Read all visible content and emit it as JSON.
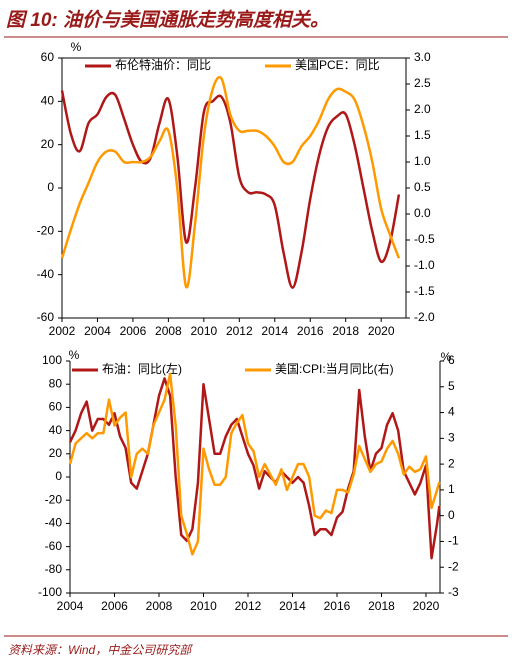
{
  "title": "图 10: 油价与美国通胀走势高度相关。",
  "source": "资料来源：Wind，中金公司研究部",
  "chart_data": [
    {
      "type": "line",
      "y_label": "%",
      "x": [
        2002,
        2002.5,
        2003,
        2003.5,
        2004,
        2004.5,
        2005,
        2005.5,
        2006,
        2006.5,
        2007,
        2007.5,
        2008,
        2008.5,
        2009,
        2009.5,
        2010,
        2010.5,
        2011,
        2011.5,
        2012,
        2012.5,
        2013,
        2013.5,
        2014,
        2014.5,
        2015,
        2015.5,
        2016,
        2016.5,
        2017,
        2017.5,
        2018,
        2018.5,
        2019,
        2019.5,
        2020,
        2020.5,
        2021
      ],
      "series": [
        {
          "name": "布伦特油价：同比",
          "color": "#b01818",
          "values": [
            45,
            25,
            17,
            30,
            34,
            42,
            43,
            32,
            20,
            12,
            14,
            30,
            41,
            15,
            -25,
            0,
            35,
            40,
            42,
            30,
            5,
            -2,
            -2,
            -3,
            -8,
            -30,
            -46,
            -30,
            -5,
            15,
            28,
            33,
            34,
            20,
            0,
            -20,
            -34,
            -25,
            -3
          ]
        },
        {
          "name": "美国PCE：同比",
          "color": "#ff9900",
          "axis": "y2",
          "values": [
            -0.85,
            -0.3,
            0.2,
            0.6,
            1.0,
            1.2,
            1.2,
            1.0,
            1.0,
            1.0,
            1.1,
            1.4,
            1.6,
            0.5,
            -1.4,
            -0.2,
            1.5,
            2.4,
            2.6,
            1.9,
            1.6,
            1.6,
            1.6,
            1.5,
            1.3,
            1.0,
            1.0,
            1.3,
            1.5,
            1.8,
            2.2,
            2.4,
            2.35,
            2.2,
            1.7,
            1.0,
            0.1,
            -0.4,
            -0.85
          ]
        }
      ],
      "xlim": [
        2002,
        2021.4
      ],
      "xticks": [
        2002,
        2004,
        2006,
        2008,
        2010,
        2012,
        2014,
        2016,
        2018,
        2020
      ],
      "ylim": [
        -60,
        60
      ],
      "yticks": [
        -60,
        -40,
        -20,
        0,
        20,
        40,
        60
      ],
      "y2lim": [
        -2,
        3
      ],
      "y2ticks": [
        {
          "value": -2,
          "label": "-2.0"
        },
        -1.5,
        {
          "value": -1,
          "label": "-1.0"
        },
        -0.5,
        {
          "value": 0,
          "label": "0.0"
        },
        0.5,
        {
          "value": 1,
          "label": "1.0"
        },
        1.5,
        {
          "value": 2,
          "label": "2.0"
        },
        2.5,
        {
          "value": 3,
          "label": "3.0"
        }
      ]
    },
    {
      "type": "line",
      "y_label": "%",
      "y2_label": "%",
      "x": [
        2004,
        2004.25,
        2004.5,
        2004.75,
        2005,
        2005.25,
        2005.5,
        2005.75,
        2006,
        2006.25,
        2006.5,
        2006.75,
        2007,
        2007.25,
        2007.5,
        2007.75,
        2008,
        2008.25,
        2008.5,
        2008.75,
        2009,
        2009.25,
        2009.5,
        2009.75,
        2010,
        2010.25,
        2010.5,
        2010.75,
        2011,
        2011.25,
        2011.5,
        2011.75,
        2012,
        2012.25,
        2012.5,
        2012.75,
        2013,
        2013.25,
        2013.5,
        2013.75,
        2014,
        2014.25,
        2014.5,
        2014.75,
        2015,
        2015.25,
        2015.5,
        2015.75,
        2016,
        2016.25,
        2016.5,
        2016.75,
        2017,
        2017.25,
        2017.5,
        2017.75,
        2018,
        2018.25,
        2018.5,
        2018.75,
        2019,
        2019.25,
        2019.5,
        2019.75,
        2020,
        2020.25,
        2020.5,
        2020.6
      ],
      "series": [
        {
          "name": "布油：同比(左)",
          "color": "#b01818",
          "values": [
            30,
            40,
            55,
            65,
            40,
            50,
            50,
            45,
            55,
            35,
            25,
            -5,
            -10,
            5,
            20,
            45,
            70,
            85,
            70,
            0,
            -50,
            -55,
            -45,
            -5,
            80,
            50,
            20,
            20,
            35,
            45,
            50,
            35,
            20,
            10,
            -10,
            5,
            0,
            -5,
            5,
            0,
            -5,
            0,
            -5,
            -25,
            -50,
            -45,
            -45,
            -50,
            -35,
            -30,
            -10,
            5,
            75,
            35,
            5,
            20,
            25,
            45,
            55,
            40,
            5,
            -5,
            -15,
            -5,
            10,
            -70,
            -40,
            -25
          ]
        },
        {
          "name": "美国:CPI:当月同比(右)",
          "color": "#ff9900",
          "axis": "y2",
          "values": [
            2.0,
            2.8,
            3.0,
            3.2,
            3.0,
            3.2,
            3.2,
            4.5,
            3.5,
            3.8,
            4.0,
            1.5,
            2.4,
            2.6,
            2.4,
            3.5,
            4.0,
            4.5,
            5.5,
            3.5,
            0.0,
            -0.7,
            -1.5,
            -1.0,
            2.6,
            1.8,
            1.2,
            1.2,
            1.5,
            3.2,
            3.6,
            3.9,
            2.8,
            2.5,
            1.5,
            2.0,
            1.6,
            1.2,
            1.8,
            1.0,
            1.5,
            2.0,
            2.0,
            1.5,
            0.0,
            -0.1,
            0.2,
            0.1,
            1.0,
            1.0,
            0.9,
            1.6,
            2.7,
            2.2,
            1.7,
            2.0,
            2.1,
            2.6,
            2.9,
            2.4,
            1.6,
            1.9,
            1.7,
            1.8,
            2.3,
            0.3,
            1.0,
            1.3
          ]
        }
      ],
      "xlim": [
        2004,
        2020.63
      ],
      "xticks": [
        2004,
        2006,
        2008,
        2010,
        2012,
        2014,
        2016,
        2018,
        2020
      ],
      "ylim": [
        -100,
        100
      ],
      "yticks": [
        -100,
        -80,
        -60,
        -40,
        -20,
        0,
        20,
        40,
        60,
        80,
        100
      ],
      "y2lim": [
        -3,
        6
      ],
      "y2ticks": [
        -3,
        -2,
        -1,
        0,
        1,
        2,
        3,
        4,
        5,
        6
      ]
    }
  ]
}
